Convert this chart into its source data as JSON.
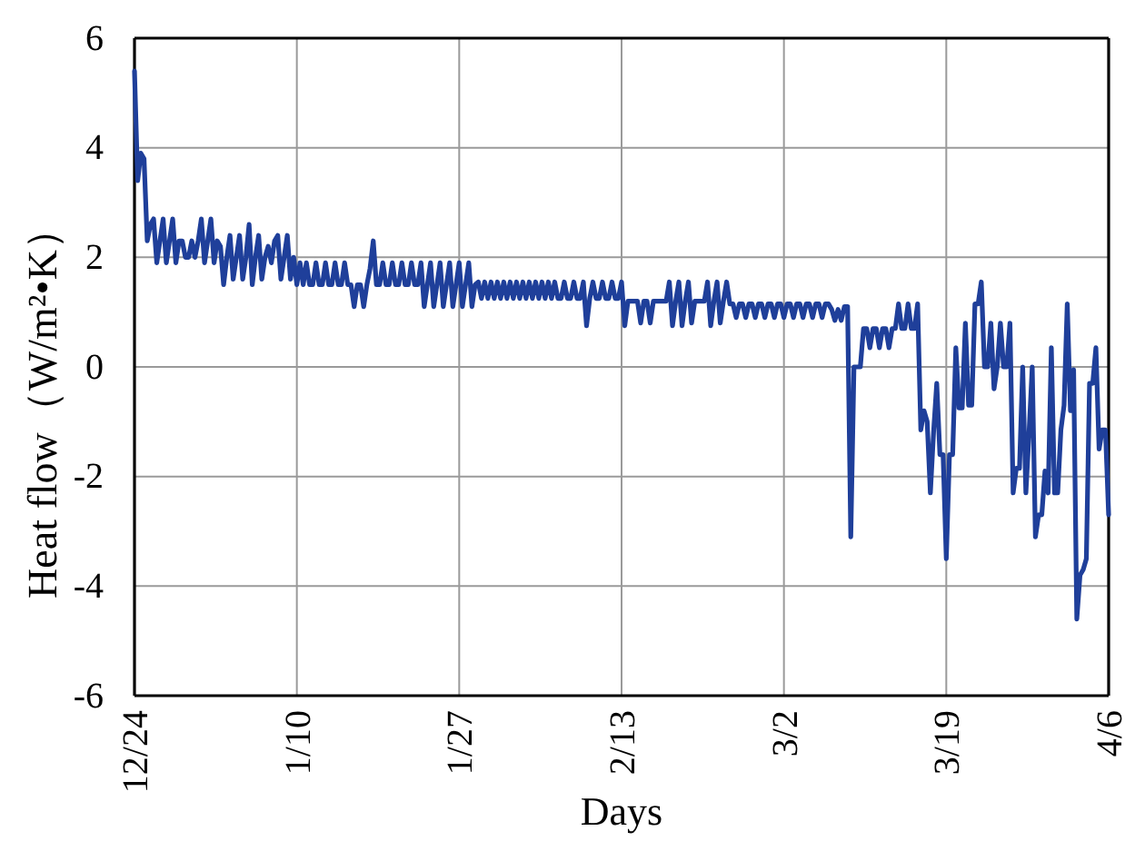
{
  "chart_data": {
    "type": "line",
    "xlabel": "Days",
    "ylabel": "Heat flow（W/m²•K）",
    "color": "#1f3f9a",
    "grid": true,
    "ylim": [
      -6,
      6
    ],
    "yticks": [
      -6,
      -4,
      -2,
      0,
      2,
      4,
      6
    ],
    "categories": [
      "12/24",
      null,
      null,
      null,
      null,
      null,
      null,
      null,
      null,
      null,
      null,
      null,
      null,
      null,
      null,
      null,
      null,
      null,
      null,
      null,
      null,
      null,
      null,
      null,
      null,
      null,
      null,
      null,
      null,
      null,
      null,
      null,
      null,
      null,
      null,
      null,
      null,
      null,
      null,
      null,
      null,
      null,
      null,
      null,
      null,
      null,
      null,
      null,
      null,
      null,
      null,
      "1/10",
      null,
      null,
      null,
      null,
      null,
      null,
      null,
      null,
      null,
      null,
      null,
      null,
      null,
      null,
      null,
      null,
      null,
      null,
      null,
      null,
      null,
      null,
      null,
      null,
      null,
      null,
      null,
      null,
      null,
      null,
      null,
      null,
      null,
      null,
      null,
      null,
      null,
      null,
      null,
      null,
      null,
      null,
      null,
      null,
      null,
      null,
      null,
      null,
      null,
      null,
      "1/27",
      null,
      null,
      null,
      null,
      null,
      null,
      null,
      null,
      null,
      null,
      null,
      null,
      null,
      null,
      null,
      null,
      null,
      null,
      null,
      null,
      null,
      null,
      null,
      null,
      null,
      null,
      null,
      null,
      null,
      null,
      null,
      null,
      null,
      null,
      null,
      null,
      null,
      null,
      null,
      null,
      null,
      null,
      null,
      null,
      null,
      null,
      null,
      null,
      null,
      null,
      "2/13",
      null,
      null,
      null,
      null,
      null,
      null,
      null,
      null,
      null,
      null,
      null,
      null,
      null,
      null,
      null,
      null,
      null,
      null,
      null,
      null,
      null,
      null,
      null,
      null,
      null,
      null,
      null,
      null,
      null,
      null,
      null,
      null,
      null,
      null,
      null,
      null,
      null,
      null,
      null,
      null,
      null,
      null,
      null,
      null,
      null,
      null,
      null,
      null,
      null,
      null,
      "3/2",
      null,
      null,
      null,
      null,
      null,
      null,
      null,
      null,
      null,
      null,
      null,
      null,
      null,
      null,
      null,
      null,
      null,
      null,
      null,
      null,
      null,
      null,
      null,
      null,
      null,
      null,
      null,
      null,
      null,
      null,
      null,
      null,
      null,
      null,
      null,
      null,
      null,
      null,
      null,
      null,
      null,
      null,
      null,
      null,
      null,
      null,
      null,
      null,
      null,
      null,
      "3/19",
      null,
      null,
      null,
      null,
      null,
      null,
      null,
      null,
      null,
      null,
      null,
      null,
      null,
      null,
      null,
      null,
      null,
      null,
      null,
      null,
      null,
      null,
      null,
      null,
      null,
      null,
      null,
      null,
      null,
      null,
      null,
      null,
      null,
      null,
      null,
      null,
      null,
      null,
      null,
      null,
      null,
      null,
      null,
      null,
      null,
      null,
      null,
      null,
      null,
      null,
      "4/6"
    ],
    "values": [
      5.4,
      3.4,
      3.9,
      3.8,
      2.3,
      2.6,
      2.7,
      1.9,
      2.3,
      2.7,
      1.9,
      2.3,
      2.7,
      1.9,
      2.3,
      2.3,
      2.0,
      2.0,
      2.3,
      2.0,
      2.3,
      2.7,
      1.9,
      2.3,
      2.7,
      1.9,
      2.3,
      2.2,
      1.5,
      2.0,
      2.4,
      1.6,
      2.0,
      2.4,
      1.6,
      2.0,
      2.6,
      1.5,
      2.0,
      2.4,
      1.6,
      2.0,
      2.2,
      1.9,
      2.3,
      2.4,
      1.6,
      2.0,
      2.4,
      1.6,
      2.0,
      1.5,
      1.9,
      1.5,
      1.9,
      1.5,
      1.5,
      1.9,
      1.5,
      1.5,
      1.9,
      1.5,
      1.5,
      1.9,
      1.5,
      1.5,
      1.9,
      1.5,
      1.5,
      1.1,
      1.5,
      1.5,
      1.1,
      1.5,
      1.8,
      2.3,
      1.5,
      1.5,
      1.9,
      1.5,
      1.5,
      1.9,
      1.5,
      1.5,
      1.9,
      1.5,
      1.5,
      1.9,
      1.5,
      1.5,
      1.9,
      1.1,
      1.5,
      1.9,
      1.1,
      1.5,
      1.9,
      1.1,
      1.5,
      1.9,
      1.1,
      1.5,
      1.9,
      1.1,
      1.5,
      1.9,
      1.1,
      1.5,
      1.55,
      1.25,
      1.55,
      1.25,
      1.55,
      1.25,
      1.55,
      1.25,
      1.55,
      1.25,
      1.55,
      1.25,
      1.55,
      1.25,
      1.55,
      1.25,
      1.55,
      1.25,
      1.55,
      1.25,
      1.55,
      1.25,
      1.55,
      1.25,
      1.55,
      1.25,
      1.25,
      1.55,
      1.25,
      1.25,
      1.55,
      1.25,
      1.25,
      1.55,
      0.75,
      1.25,
      1.55,
      1.25,
      1.25,
      1.55,
      1.25,
      1.25,
      1.55,
      1.25,
      1.25,
      1.55,
      0.75,
      1.2,
      1.2,
      1.2,
      1.2,
      0.8,
      1.2,
      1.2,
      0.8,
      1.2,
      1.2,
      1.2,
      1.2,
      1.2,
      1.55,
      0.75,
      1.2,
      1.55,
      0.75,
      1.2,
      1.55,
      0.8,
      1.2,
      1.2,
      1.2,
      1.2,
      1.55,
      0.75,
      1.2,
      1.55,
      0.8,
      1.2,
      1.55,
      1.15,
      1.15,
      0.9,
      1.15,
      1.15,
      0.9,
      1.15,
      1.15,
      0.9,
      1.15,
      1.15,
      0.9,
      1.15,
      1.15,
      0.9,
      1.15,
      1.15,
      0.9,
      1.15,
      1.15,
      0.9,
      1.15,
      1.15,
      0.9,
      1.15,
      1.15,
      0.9,
      1.15,
      1.15,
      0.9,
      1.15,
      1.15,
      1.05,
      0.85,
      1.05,
      0.85,
      1.1,
      1.1,
      -3.1,
      0,
      0,
      0,
      0.7,
      0.7,
      0.35,
      0.7,
      0.7,
      0.35,
      0.7,
      0.7,
      0.35,
      0.7,
      0.7,
      1.15,
      0.7,
      0.7,
      1.15,
      0.7,
      0.7,
      1.15,
      -1.15,
      -0.8,
      -1.0,
      -2.3,
      -1.2,
      -0.3,
      -1.6,
      -1.6,
      -3.5,
      -1.6,
      -1.6,
      0.35,
      -0.75,
      -0.75,
      0.8,
      -0.7,
      -0.7,
      1.15,
      1.15,
      1.55,
      0,
      0,
      0.8,
      -0.4,
      0,
      0.8,
      0,
      0,
      0.8,
      -2.3,
      -1.85,
      -1.85,
      0,
      -2.3,
      -1.2,
      0,
      -3.1,
      -2.7,
      -2.7,
      -1.9,
      -2.3,
      0.35,
      -2.3,
      -2.3,
      -1.15,
      -0.7,
      1.15,
      -0.8,
      -0.05,
      -4.6,
      -3.8,
      -3.7,
      -3.5,
      -0.3,
      -0.3,
      0.35,
      -1.5,
      -1.15,
      -1.15,
      -2.7
    ]
  }
}
